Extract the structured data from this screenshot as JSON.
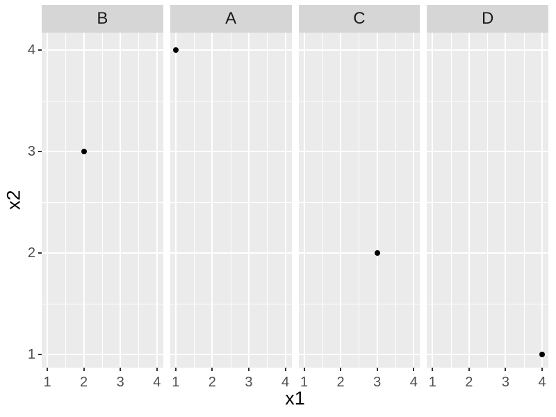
{
  "chart_data": {
    "type": "scatter",
    "title": "",
    "xlabel": "x1",
    "ylabel": "x2",
    "facets": [
      {
        "label": "B",
        "points": [
          {
            "x1": 2,
            "x2": 3
          }
        ]
      },
      {
        "label": "A",
        "points": [
          {
            "x1": 1,
            "x2": 4
          }
        ]
      },
      {
        "label": "C",
        "points": [
          {
            "x1": 3,
            "x2": 2
          }
        ]
      },
      {
        "label": "D",
        "points": [
          {
            "x1": 4,
            "x2": 1
          }
        ]
      }
    ],
    "x_ticks": [
      1,
      2,
      3,
      4
    ],
    "y_ticks": [
      1,
      2,
      3,
      4
    ],
    "x_range": [
      0.85,
      4.15
    ],
    "y_range": [
      0.85,
      4.15
    ],
    "grid": "major-and-minor",
    "legend": "none",
    "style": {
      "background": "#FFFFFF",
      "panel_bg": "#EBEBEB",
      "strip_bg": "#D6D6D6",
      "grid_color": "#FFFFFF",
      "point_color": "#000000",
      "tick_label_color": "#4D4D4D",
      "tick_mark_color": "#333333",
      "axis_title_color": "#000000",
      "strip_text_color": "#1A1A1A"
    }
  }
}
